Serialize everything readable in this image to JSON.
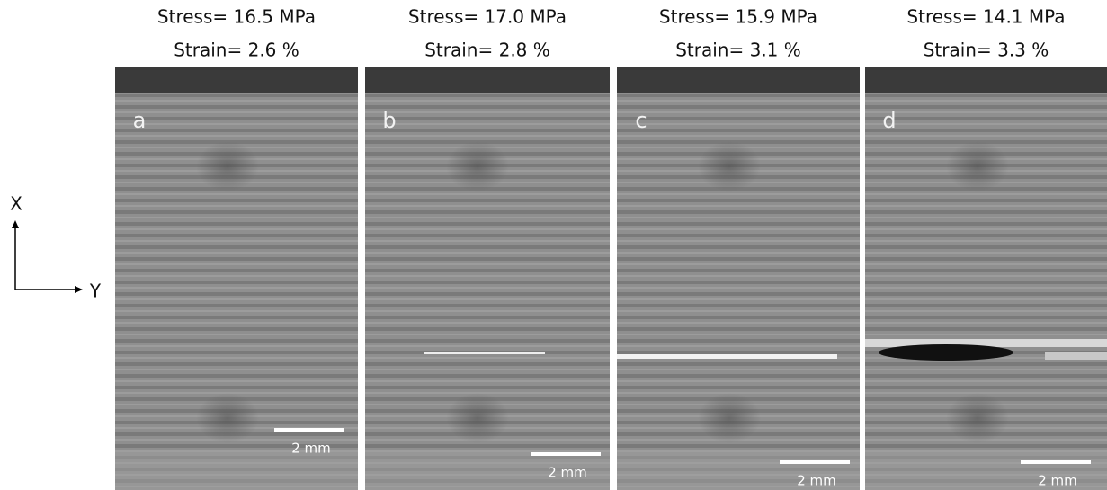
{
  "axes": {
    "x_label": "X",
    "y_label": "Y"
  },
  "panels": [
    {
      "stress": "Stress= 16.5 MPa",
      "strain": "Strain= 2.6 %",
      "letter": "a",
      "scale": "2 mm"
    },
    {
      "stress": "Stress= 17.0 MPa",
      "strain": "Strain= 2.8 %",
      "letter": "b",
      "scale": "2 mm"
    },
    {
      "stress": "Stress= 15.9 MPa",
      "strain": "Strain= 3.1 %",
      "letter": "c",
      "scale": "2 mm"
    },
    {
      "stress": "Stress= 14.1 MPa",
      "strain": "Strain= 3.3 %",
      "letter": "d",
      "scale": "2 mm"
    }
  ]
}
